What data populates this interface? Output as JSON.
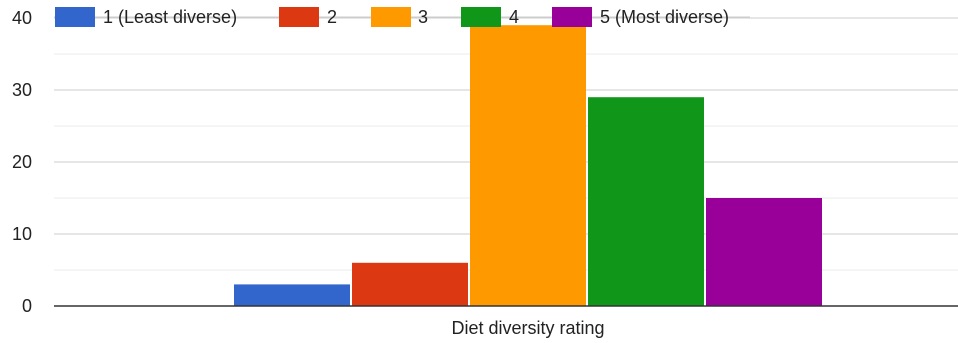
{
  "chart_data": {
    "type": "bar",
    "title": "",
    "xlabel": "",
    "ylabel": "",
    "categories": [
      "Diet diversity rating"
    ],
    "series": [
      {
        "name": "1 (Least diverse)",
        "values": [
          3
        ],
        "color": "#3366cc"
      },
      {
        "name": "2",
        "values": [
          6
        ],
        "color": "#dc3912"
      },
      {
        "name": "3",
        "values": [
          39
        ],
        "color": "#ff9900"
      },
      {
        "name": "4",
        "values": [
          29
        ],
        "color": "#109618"
      },
      {
        "name": "5 (Most diverse)",
        "values": [
          15
        ],
        "color": "#990099"
      }
    ],
    "ylim": [
      0,
      40
    ],
    "yticks": [
      "0",
      "10",
      "20",
      "30",
      "40"
    ],
    "grid": true,
    "legend_position": "top"
  }
}
